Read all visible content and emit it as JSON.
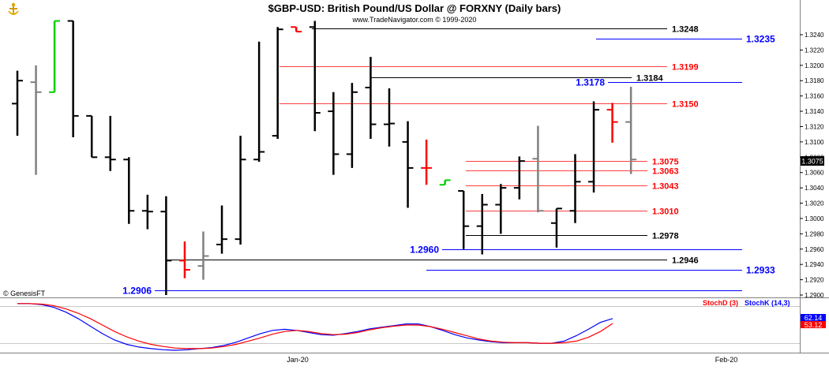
{
  "header": {
    "title": "$GBP-USD:  British Pound/US Dollar @ FORXNY  (Daily bars)",
    "subtitle": "www.TradeNavigator.com © 1999-2020",
    "logo_icon": "anchor-icon"
  },
  "watermark": "© GenesisFT",
  "chart_data": [
    {
      "type": "ohlc",
      "title": "$GBP-USD:  British Pound/US Dollar @ FORXNY  (Daily bars)",
      "ylim": [
        1.2895,
        1.3265
      ],
      "y_ticks": [
        "1.3240",
        "1.3220",
        "1.3200",
        "1.3180",
        "1.3160",
        "1.3140",
        "1.3120",
        "1.3100",
        "1.3080",
        "1.3060",
        "1.3040",
        "1.3020",
        "1.3000",
        "1.2980",
        "1.2960",
        "1.2940",
        "1.2920",
        "1.2900"
      ],
      "x_labels": [
        "Jan-20",
        "Feb-20"
      ],
      "last_price": "1.3075",
      "bars": [
        {
          "o": 1.315,
          "h": 1.3193,
          "l": 1.3108,
          "c": 1.318,
          "color": "black"
        },
        {
          "o": 1.3178,
          "h": 1.32,
          "l": 1.3057,
          "c": 1.3165,
          "color": "gray"
        },
        {
          "o": 1.3165,
          "h": 1.3258,
          "l": 1.3165,
          "c": 1.3258,
          "color": "green"
        },
        {
          "o": 1.3258,
          "h": 1.3258,
          "l": 1.3106,
          "c": 1.3134,
          "color": "black"
        },
        {
          "o": 1.3134,
          "h": 1.3134,
          "l": 1.308,
          "c": 1.308,
          "color": "black"
        },
        {
          "o": 1.308,
          "h": 1.3134,
          "l": 1.3062,
          "c": 1.3077,
          "color": "black"
        },
        {
          "o": 1.3077,
          "h": 1.308,
          "l": 1.2993,
          "c": 1.301,
          "color": "black"
        },
        {
          "o": 1.301,
          "h": 1.3031,
          "l": 1.2986,
          "c": 1.3009,
          "color": "black"
        },
        {
          "o": 1.3009,
          "h": 1.3029,
          "l": 1.29,
          "c": 1.2945,
          "color": "black"
        },
        {
          "o": 1.2945,
          "h": 1.297,
          "l": 1.2922,
          "c": 1.2933,
          "color": "red"
        },
        {
          "o": 1.2938,
          "h": 1.2983,
          "l": 1.292,
          "c": 1.2951,
          "color": "gray"
        },
        {
          "o": 1.2966,
          "h": 1.3017,
          "l": 1.2954,
          "c": 1.2973,
          "color": "black"
        },
        {
          "o": 1.2973,
          "h": 1.3108,
          "l": 1.2966,
          "c": 1.3077,
          "color": "black"
        },
        {
          "o": 1.3077,
          "h": 1.3231,
          "l": 1.3074,
          "c": 1.3087,
          "color": "black"
        },
        {
          "o": 1.3108,
          "h": 1.325,
          "l": 1.3104,
          "c": 1.3247,
          "color": "black"
        },
        {
          "o": 1.325,
          "h": 1.325,
          "l": 1.3244,
          "c": 1.3244,
          "color": "red"
        },
        {
          "o": 1.325,
          "h": 1.3258,
          "l": 1.3114,
          "c": 1.3138,
          "color": "black"
        },
        {
          "o": 1.314,
          "h": 1.3165,
          "l": 1.3057,
          "c": 1.3084,
          "color": "black"
        },
        {
          "o": 1.3084,
          "h": 1.3177,
          "l": 1.3066,
          "c": 1.3165,
          "color": "black"
        },
        {
          "o": 1.3171,
          "h": 1.3211,
          "l": 1.3104,
          "c": 1.3123,
          "color": "black"
        },
        {
          "o": 1.3123,
          "h": 1.317,
          "l": 1.3094,
          "c": 1.3124,
          "color": "black"
        },
        {
          "o": 1.31,
          "h": 1.3127,
          "l": 1.3014,
          "c": 1.3066,
          "color": "black"
        },
        {
          "o": 1.3066,
          "h": 1.3103,
          "l": 1.3044,
          "c": 1.3066,
          "color": "red"
        },
        {
          "o": 1.3044,
          "h": 1.305,
          "l": 1.3044,
          "c": 1.305,
          "color": "green"
        },
        {
          "o": 1.3036,
          "h": 1.3036,
          "l": 1.296,
          "c": 1.299,
          "color": "black"
        },
        {
          "o": 1.299,
          "h": 1.3032,
          "l": 1.2953,
          "c": 1.3018,
          "color": "black"
        },
        {
          "o": 1.3018,
          "h": 1.3045,
          "l": 1.298,
          "c": 1.304,
          "color": "black"
        },
        {
          "o": 1.304,
          "h": 1.3081,
          "l": 1.3025,
          "c": 1.3075,
          "color": "black"
        },
        {
          "o": 1.3078,
          "h": 1.3121,
          "l": 1.3008,
          "c": 1.301,
          "color": "gray"
        },
        {
          "o": 1.2994,
          "h": 1.3013,
          "l": 1.2962,
          "c": 1.3013,
          "color": "black"
        },
        {
          "o": 1.301,
          "h": 1.3084,
          "l": 1.2994,
          "c": 1.3048,
          "color": "black"
        },
        {
          "o": 1.3048,
          "h": 1.3153,
          "l": 1.3034,
          "c": 1.3142,
          "color": "black"
        },
        {
          "o": 1.3142,
          "h": 1.3151,
          "l": 1.3099,
          "c": 1.3126,
          "color": "red"
        },
        {
          "o": 1.3126,
          "h": 1.3172,
          "l": 1.3058,
          "c": 1.3077,
          "color": "gray"
        }
      ],
      "levels": [
        {
          "value": 1.3248,
          "label": "1.3248",
          "color": "#000000",
          "side": "right"
        },
        {
          "value": 1.3235,
          "label": "1.3235",
          "color": "#0000ff",
          "side": "right"
        },
        {
          "value": 1.3199,
          "label": "1.3199",
          "color": "#ff0000",
          "side": "right"
        },
        {
          "value": 1.3184,
          "label": "1.3184",
          "color": "#000000",
          "side": "right"
        },
        {
          "value": 1.3178,
          "label": "1.3178",
          "color": "#0000ff",
          "side": "left"
        },
        {
          "value": 1.315,
          "label": "1.3150",
          "color": "#ff0000",
          "side": "right"
        },
        {
          "value": 1.3075,
          "label": "1.3075",
          "color": "#ff0000",
          "side": "right"
        },
        {
          "value": 1.3063,
          "label": "1.3063",
          "color": "#ff0000",
          "side": "right"
        },
        {
          "value": 1.3043,
          "label": "1.3043",
          "color": "#ff0000",
          "side": "right"
        },
        {
          "value": 1.301,
          "label": "1.3010",
          "color": "#ff0000",
          "side": "right"
        },
        {
          "value": 1.2978,
          "label": "1.2978",
          "color": "#000000",
          "side": "right"
        },
        {
          "value": 1.296,
          "label": "1.2960",
          "color": "#0000ff",
          "side": "left"
        },
        {
          "value": 1.2946,
          "label": "1.2946",
          "color": "#000000",
          "side": "right"
        },
        {
          "value": 1.2933,
          "label": "1.2933",
          "color": "#0000ff",
          "side": "right"
        },
        {
          "value": 1.2906,
          "label": "1.2906",
          "color": "#0000ff",
          "side": "left"
        }
      ]
    },
    {
      "type": "line",
      "ylim": [
        0,
        100
      ],
      "legend": [
        "StochD (3)",
        "StochK (14,3)"
      ],
      "series": [
        {
          "name": "StochD (3)",
          "color": "#ff0000",
          "value_label": "53.12",
          "values": [
            90,
            90,
            89,
            86,
            80,
            72,
            62,
            50,
            38,
            28,
            20,
            14,
            10,
            7,
            6,
            6,
            7,
            10,
            14,
            20,
            26,
            33,
            38,
            40,
            38,
            34,
            32,
            33,
            36,
            41,
            45,
            48,
            50,
            50,
            47,
            42,
            36,
            30,
            24,
            20,
            18,
            17,
            17,
            16,
            16,
            17,
            20,
            27,
            38,
            53
          ]
        },
        {
          "name": "StochK (14,3)",
          "color": "#0000ff",
          "value_label": "62.14",
          "values": [
            90,
            90,
            88,
            83,
            74,
            62,
            48,
            34,
            22,
            14,
            9,
            6,
            4,
            3,
            4,
            6,
            8,
            12,
            18,
            26,
            34,
            40,
            42,
            40,
            36,
            32,
            31,
            34,
            38,
            43,
            46,
            49,
            52,
            52,
            47,
            40,
            32,
            26,
            22,
            19,
            17,
            17,
            17,
            16,
            16,
            20,
            30,
            42,
            55,
            62
          ]
        }
      ]
    }
  ]
}
